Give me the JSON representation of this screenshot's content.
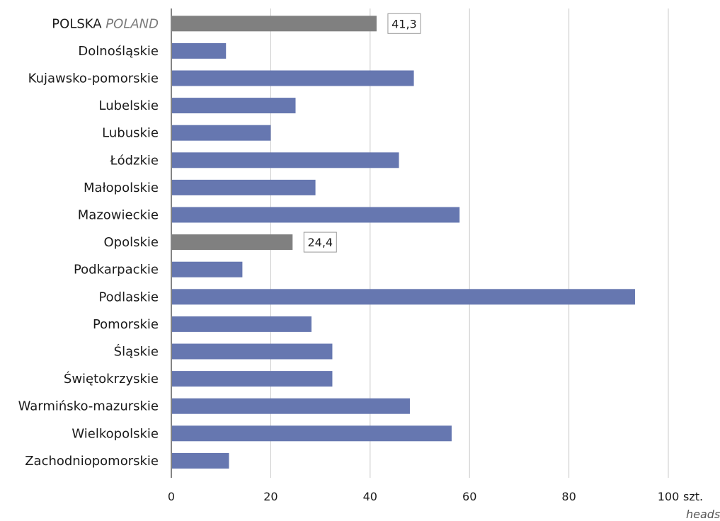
{
  "chart_data": {
    "type": "bar",
    "orientation": "horizontal",
    "categories": [
      "POLSKA",
      "Dolnośląskie",
      "Kujawsko-pomorskie",
      "Lubelskie",
      "Lubuskie",
      "Łódzkie",
      "Małopolskie",
      "Mazowieckie",
      "Opolskie",
      "Podkarpackie",
      "Podlaskie",
      "Pomorskie",
      "Śląskie",
      "Świętokrzyskie",
      "Warmińsko-mazurskie",
      "Wielkopolskie",
      "Zachodniopomorskie"
    ],
    "first_category_secondary": "POLAND",
    "values": [
      41.3,
      11.0,
      48.8,
      25.0,
      20.0,
      45.8,
      29.0,
      58.0,
      24.4,
      14.3,
      93.3,
      28.2,
      32.4,
      32.4,
      48.0,
      56.4,
      11.6
    ],
    "highlighted_categories": [
      "POLSKA",
      "Opolskie"
    ],
    "data_labels": [
      {
        "category": "POLSKA",
        "text": "41,3"
      },
      {
        "category": "Opolskie",
        "text": "24,4"
      }
    ],
    "x_ticks": [
      0,
      20,
      40,
      60,
      80,
      100
    ],
    "x_tick_labels": [
      "0",
      "20",
      "40",
      "60",
      "80",
      "100"
    ],
    "xlim": [
      0,
      110
    ],
    "unit_label": "szt.",
    "unit_label_secondary": "heads",
    "grid": true,
    "colors": {
      "bar": "#6677b0",
      "highlight": "#808080",
      "grid": "#c8c8c8",
      "axis": "#333333",
      "label_box_border": "#999999"
    }
  }
}
